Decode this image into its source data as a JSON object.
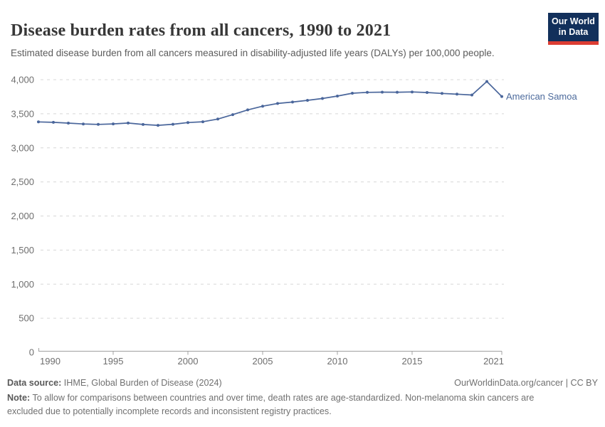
{
  "header": {
    "title": "Disease burden rates from all cancers, 1990 to 2021",
    "subtitle": "Estimated disease burden from all cancers measured in disability-adjusted life years (DALYs) per 100,000 people.",
    "logo": {
      "line1": "Our World",
      "line2": "in Data"
    }
  },
  "chart_data": {
    "type": "line",
    "title": "Disease burden rates from all cancers, 1990 to 2021",
    "subtitle": "Estimated disease burden from all cancers measured in disability-adjusted life years (DALYs) per 100,000 people.",
    "xlabel": "",
    "ylabel": "",
    "grid": "horizontal-dashed",
    "legend_position": "end-of-line-label",
    "xlim": [
      1990,
      2021
    ],
    "ylim": [
      0,
      4000
    ],
    "x_ticks": [
      1990,
      1995,
      2000,
      2005,
      2010,
      2015,
      2021
    ],
    "y_ticks": [
      0,
      500,
      1000,
      1500,
      2000,
      2500,
      3000,
      3500,
      4000
    ],
    "x": [
      1990,
      1991,
      1992,
      1993,
      1994,
      1995,
      1996,
      1997,
      1998,
      1999,
      2000,
      2001,
      2002,
      2003,
      2004,
      2005,
      2006,
      2007,
      2008,
      2009,
      2010,
      2011,
      2012,
      2013,
      2014,
      2015,
      2016,
      2017,
      2018,
      2019,
      2020,
      2021
    ],
    "series": [
      {
        "name": "American Samoa",
        "color": "#4a669b",
        "label_color": "#4c6a9c",
        "values": [
          3381,
          3374,
          3363,
          3350,
          3344,
          3351,
          3364,
          3343,
          3331,
          3346,
          3371,
          3383,
          3422,
          3487,
          3557,
          3612,
          3651,
          3672,
          3697,
          3724,
          3760,
          3802,
          3814,
          3817,
          3816,
          3820,
          3812,
          3798,
          3788,
          3775,
          3974,
          3754
        ]
      }
    ]
  },
  "footer": {
    "datasource_label": "Data source:",
    "datasource_value": " IHME, Global Burden of Disease (2024)",
    "rights": "OurWorldinData.org/cancer | CC BY",
    "note_label": "Note:",
    "note_value": " To allow for comparisons between countries and over time, death rates are age-standardized. Non-melanoma skin cancers are excluded due to potentially incomplete records and inconsistent registry practices."
  }
}
